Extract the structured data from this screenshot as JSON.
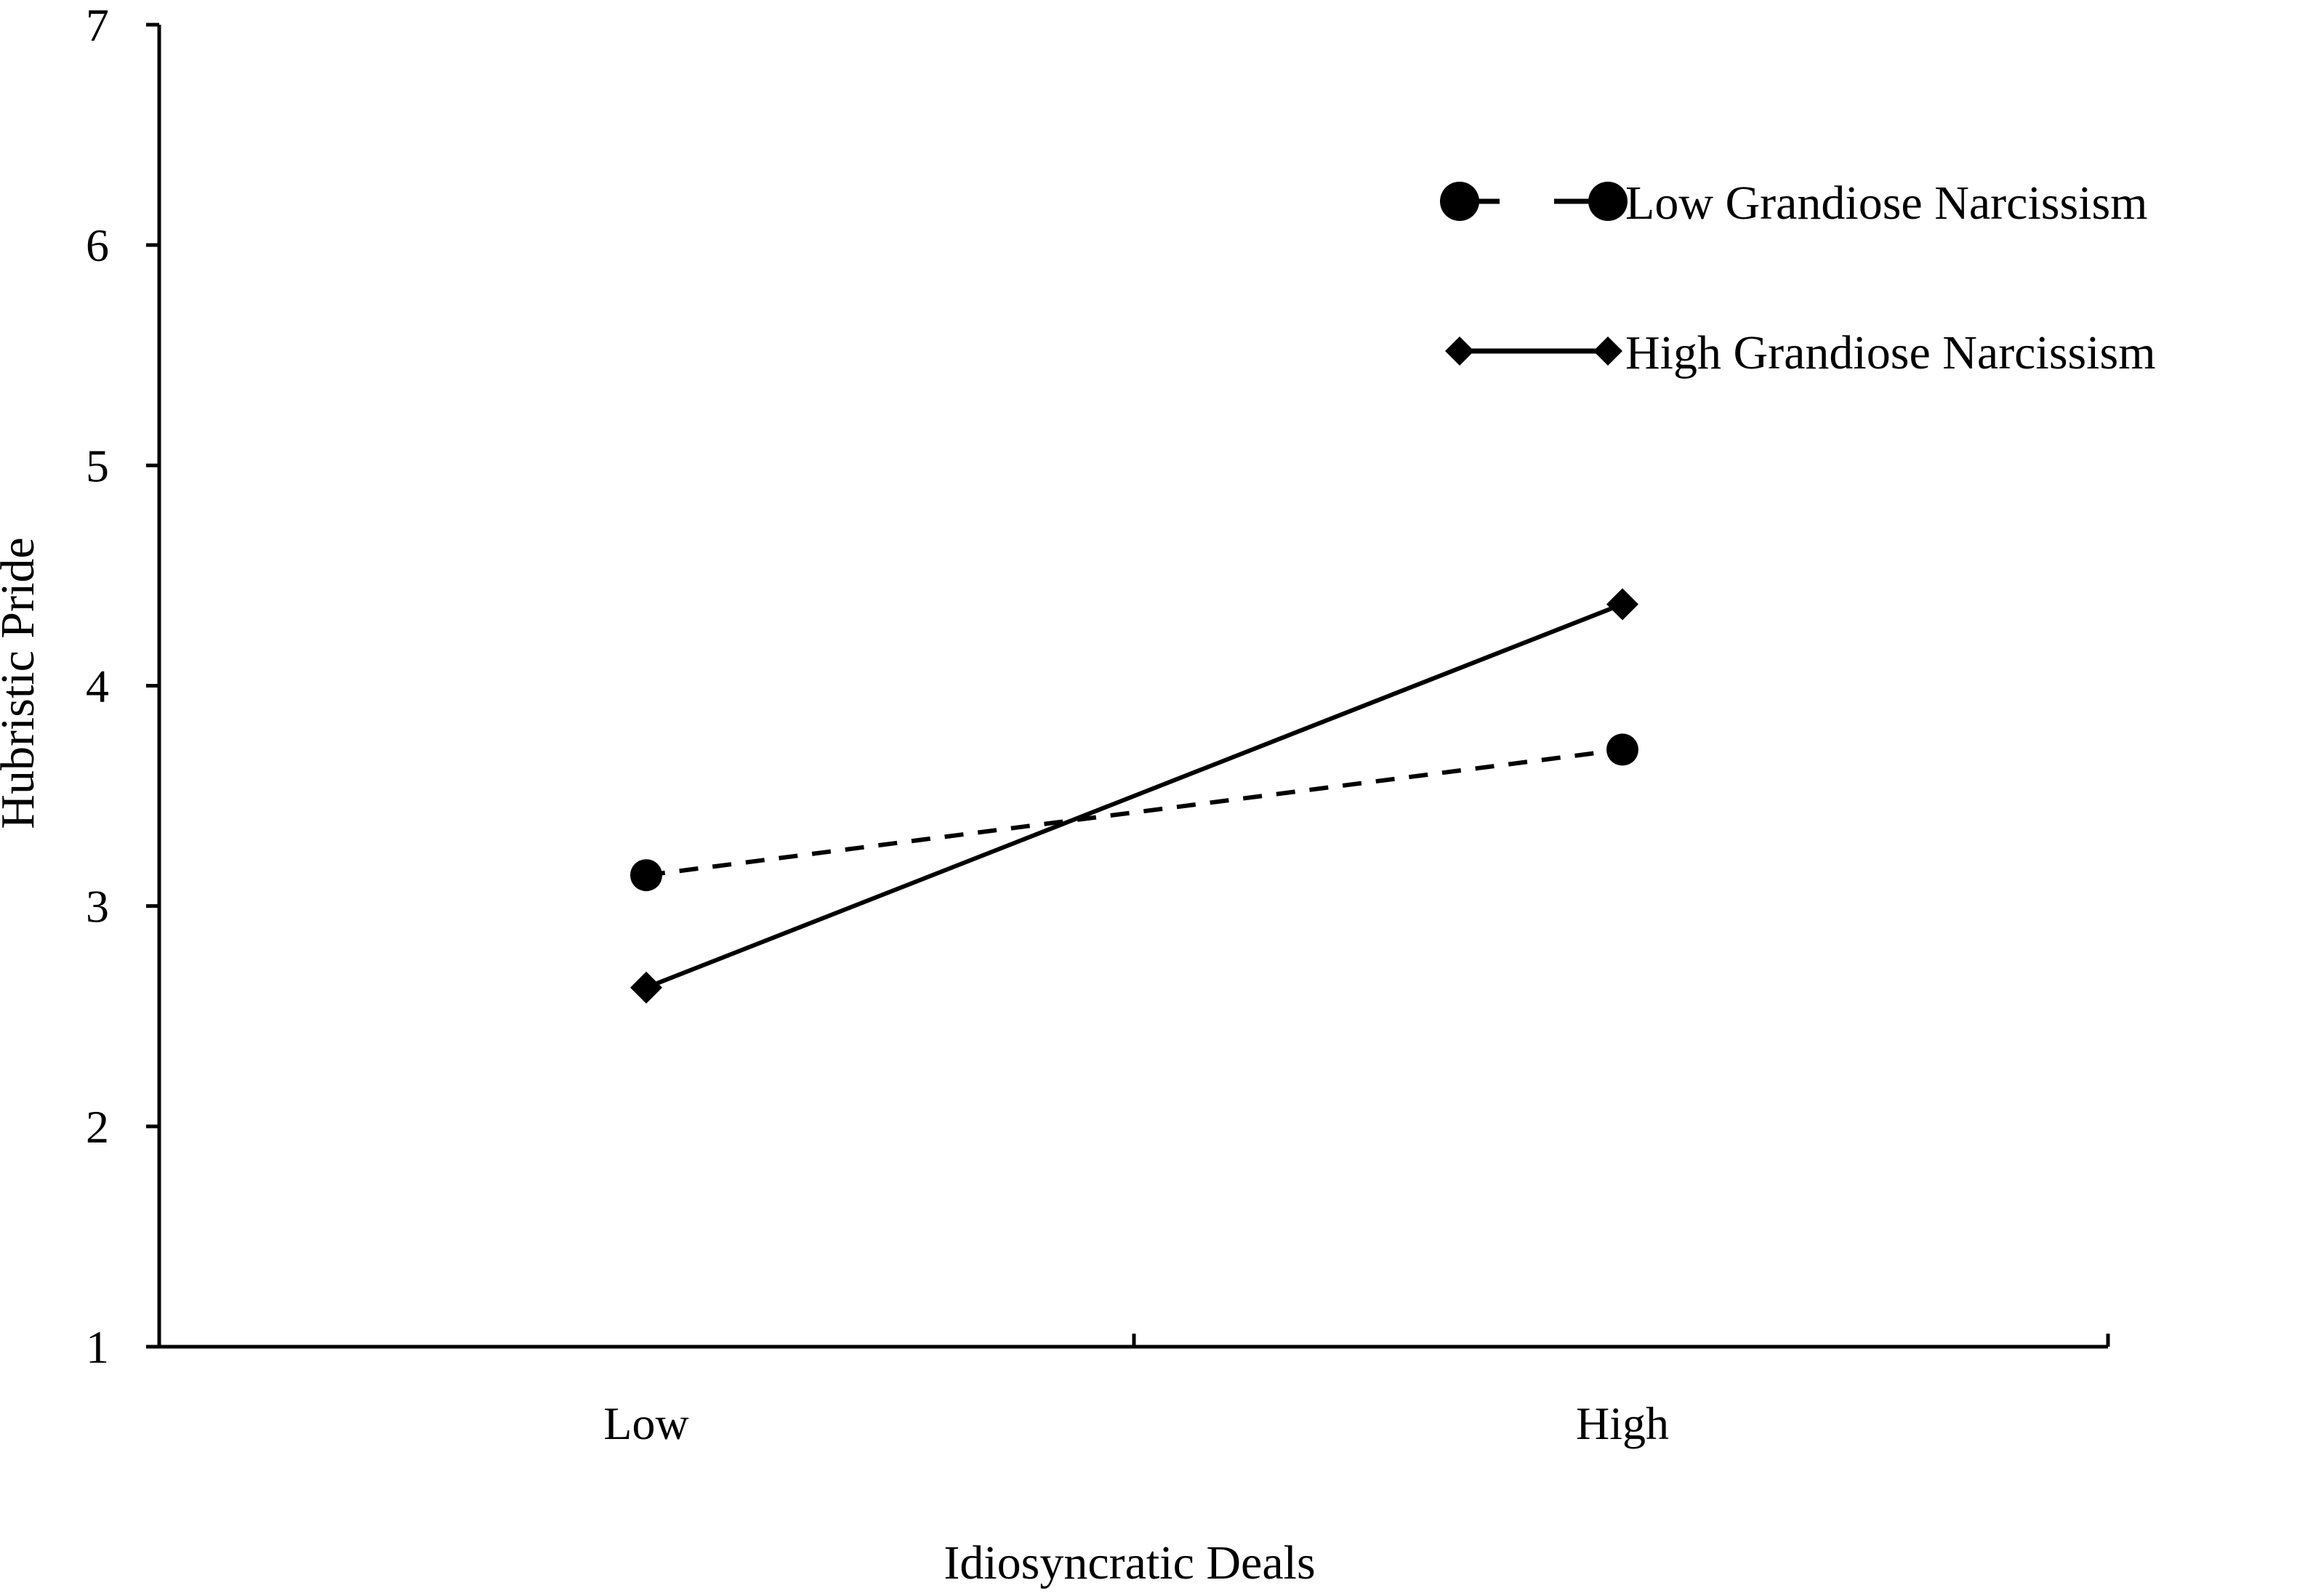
{
  "chart_data": {
    "type": "line",
    "categories": [
      "Low",
      "High"
    ],
    "series": [
      {
        "name": "Low Grandiose Narcissism",
        "values": [
          3.14,
          3.71
        ],
        "line_style": "dashed",
        "marker": "circle",
        "color": "#000000"
      },
      {
        "name": "High Grandiose Narcissism",
        "values": [
          2.63,
          4.37
        ],
        "line_style": "solid",
        "marker": "diamond",
        "color": "#000000"
      }
    ],
    "title": "",
    "xlabel": "Idiosyncratic Deals",
    "ylabel": "Hubristic Pride",
    "ylim": [
      1,
      7
    ],
    "yticks": [
      "1",
      "2",
      "3",
      "4",
      "5",
      "6",
      "7"
    ],
    "grid": false,
    "legend_position": "top-right"
  }
}
